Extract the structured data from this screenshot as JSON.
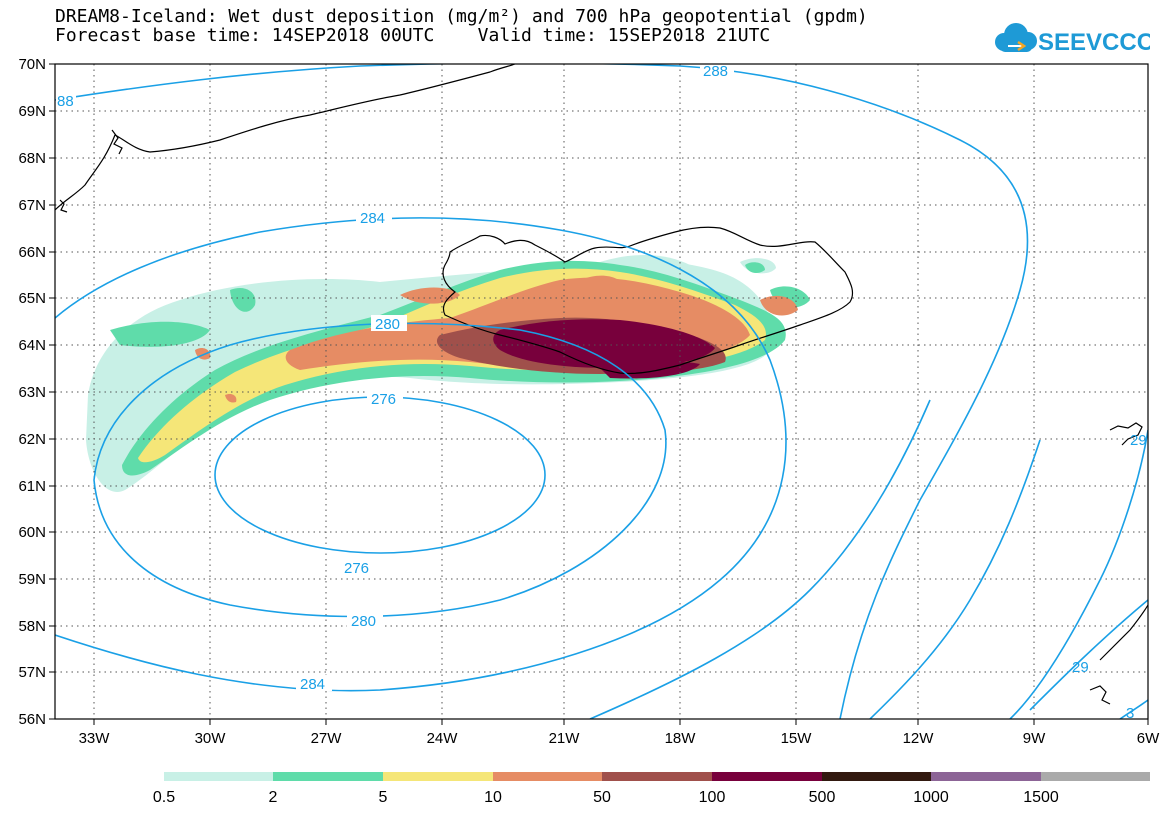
{
  "title": {
    "line1": "DREAM8-Iceland: Wet dust deposition (mg/m²) and 700 hPa geopotential (gpdm)",
    "line2": "Forecast base time: 14SEP2018 00UTC    Valid time: 15SEP2018 21UTC"
  },
  "logo": {
    "text": "SEEVCCC",
    "icon": "cloud-icon",
    "color": "#1e9ad6"
  },
  "map": {
    "lat_labels": [
      "70N",
      "69N",
      "68N",
      "67N",
      "66N",
      "65N",
      "64N",
      "63N",
      "62N",
      "61N",
      "60N",
      "59N",
      "58N",
      "57N",
      "56N"
    ],
    "lon_labels": [
      "33W",
      "30W",
      "27W",
      "24W",
      "21W",
      "18W",
      "15W",
      "12W",
      "9W",
      "6W"
    ],
    "contour_color": "#1aa0e6",
    "contour_labels": {
      "c288_top": "288",
      "c88_left": "88",
      "c284_upper": "284",
      "c280_upper": "280",
      "c276_upper": "276",
      "c276_lower": "276",
      "c280_lower": "280",
      "c284_lower": "284",
      "c29_right": "29",
      "c29_bottom": "29",
      "c3_bottom": "3"
    }
  },
  "legend": {
    "labels": [
      "0.5",
      "2",
      "5",
      "10",
      "50",
      "100",
      "500",
      "1000",
      "1500"
    ],
    "colors": [
      "#c8f0e6",
      "#5fdcaa",
      "#f5e678",
      "#e68c64",
      "#a0504b",
      "#78003c",
      "#32190f",
      "#8c6496",
      "#aaaaaa"
    ]
  }
}
